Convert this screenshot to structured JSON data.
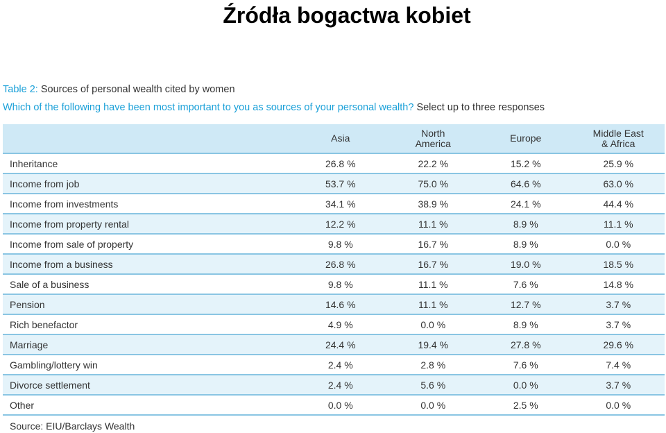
{
  "slide": {
    "title": "Źródła bogactwa kobiet"
  },
  "caption": {
    "table_label": "Table 2:",
    "table_title": "Sources of personal wealth cited by women",
    "question": "Which of the following have been most important to you as sources of your personal wealth?",
    "instruction": "Select up to three responses"
  },
  "table": {
    "headers": [
      {
        "line1": "",
        "line2": ""
      },
      {
        "line1": "Asia",
        "line2": ""
      },
      {
        "line1": "North",
        "line2": "America"
      },
      {
        "line1": "Europe",
        "line2": ""
      },
      {
        "line1": "Middle East",
        "line2": "& Africa"
      }
    ],
    "rows": [
      {
        "label": "Inheritance",
        "values": [
          "26.8 %",
          "22.2 %",
          "15.2 %",
          "25.9 %"
        ]
      },
      {
        "label": "Income from job",
        "values": [
          "53.7 %",
          "75.0 %",
          "64.6 %",
          "63.0 %"
        ]
      },
      {
        "label": "Income from investments",
        "values": [
          "34.1 %",
          "38.9 %",
          "24.1 %",
          "44.4 %"
        ]
      },
      {
        "label": "Income from property rental",
        "values": [
          "12.2 %",
          "11.1 %",
          "8.9 %",
          "11.1 %"
        ]
      },
      {
        "label": "Income from sale of property",
        "values": [
          "9.8 %",
          "16.7 %",
          "8.9 %",
          "0.0 %"
        ]
      },
      {
        "label": "Income from a business",
        "values": [
          "26.8 %",
          "16.7 %",
          "19.0 %",
          "18.5 %"
        ]
      },
      {
        "label": "Sale of a business",
        "values": [
          "9.8 %",
          "11.1 %",
          "7.6 %",
          "14.8 %"
        ]
      },
      {
        "label": "Pension",
        "values": [
          "14.6 %",
          "11.1 %",
          "12.7 %",
          "3.7 %"
        ]
      },
      {
        "label": "Rich benefactor",
        "values": [
          "4.9 %",
          "0.0 %",
          "8.9 %",
          "3.7 %"
        ]
      },
      {
        "label": "Marriage",
        "values": [
          "24.4 %",
          "19.4 %",
          "27.8 %",
          "29.6 %"
        ]
      },
      {
        "label": "Gambling/lottery win",
        "values": [
          "2.4 %",
          "2.8 %",
          "7.6 %",
          "7.4 %"
        ]
      },
      {
        "label": "Divorce settlement",
        "values": [
          "2.4 %",
          "5.6 %",
          "0.0 %",
          "3.7 %"
        ]
      },
      {
        "label": "Other",
        "values": [
          "0.0 %",
          "0.0 %",
          "2.5 %",
          "0.0 %"
        ]
      }
    ]
  },
  "source": "Source: EIU/Barclays Wealth",
  "colors": {
    "accent": "#1aa0d8",
    "header_bg": "#cfe9f6",
    "stripe": "#e4f3fa",
    "rule": "#8ac5e3"
  }
}
